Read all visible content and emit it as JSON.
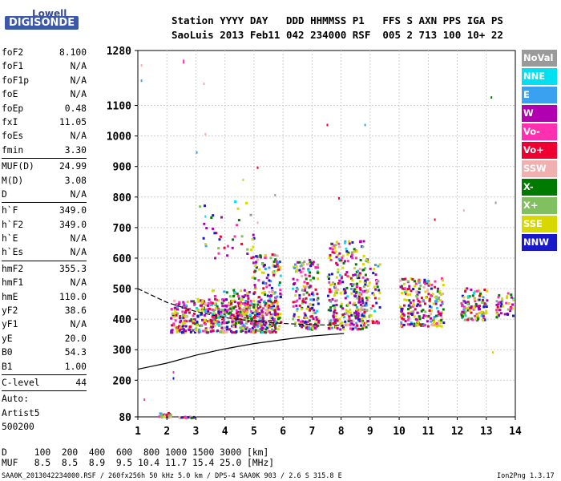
{
  "logo": {
    "top": "Lowell",
    "bottom": "DIGISONDE"
  },
  "header": {
    "line1": "Station YYYY DAY   DDD HHMMSS P1   FFS S AXN PPS IGA PS",
    "line2": "SaoLuis 2013 Feb11 042 234000 RSF  005 2 713 100 10+ 22"
  },
  "params": [
    {
      "label": "foF2",
      "value": "8.100"
    },
    {
      "label": "foF1",
      "value": "N/A"
    },
    {
      "label": "foF1p",
      "value": "N/A"
    },
    {
      "label": "foE",
      "value": "N/A"
    },
    {
      "label": "foEp",
      "value": "0.48"
    },
    {
      "label": "fxI",
      "value": "11.05"
    },
    {
      "label": "foEs",
      "value": "N/A"
    },
    {
      "label": "fmin",
      "value": "3.30"
    },
    {
      "sep": true
    },
    {
      "label": "MUF(D)",
      "value": "24.99"
    },
    {
      "label": "M(D)",
      "value": "3.08"
    },
    {
      "label": "D",
      "value": "N/A"
    },
    {
      "sep": true
    },
    {
      "label": "h`F",
      "value": "349.0"
    },
    {
      "label": "h`F2",
      "value": "349.0"
    },
    {
      "label": "h`E",
      "value": "N/A"
    },
    {
      "label": "h`Es",
      "value": "N/A"
    },
    {
      "sep": true
    },
    {
      "label": "hmF2",
      "value": "355.3"
    },
    {
      "label": "hmF1",
      "value": "N/A"
    },
    {
      "label": "hmE",
      "value": "110.0"
    },
    {
      "label": "yF2",
      "value": "38.6"
    },
    {
      "label": "yF1",
      "value": "N/A"
    },
    {
      "label": "yE",
      "value": "20.0"
    },
    {
      "label": "B0",
      "value": "54.3"
    },
    {
      "label": "B1",
      "value": "1.00"
    },
    {
      "sep": true
    },
    {
      "label": "C-level",
      "value": "44"
    },
    {
      "sep": true
    },
    {
      "text": "Auto:"
    },
    {
      "text": "Artist5"
    },
    {
      "text": "500200"
    }
  ],
  "legend": [
    {
      "label": "NoVal",
      "color": "#9a9a9a"
    },
    {
      "label": "NNE",
      "color": "#00e0f0"
    },
    {
      "label": "E",
      "color": "#3aa0f0"
    },
    {
      "label": "W",
      "color": "#b000b0"
    },
    {
      "label": "Vo-",
      "color": "#ff30b0"
    },
    {
      "label": "Vo+",
      "color": "#ee0033"
    },
    {
      "label": "SSW",
      "color": "#f0b0b0"
    },
    {
      "label": "X-",
      "color": "#007a00"
    },
    {
      "label": "X+",
      "color": "#80c060"
    },
    {
      "label": "SSE",
      "color": "#d8d800"
    },
    {
      "label": "NNW",
      "color": "#1818c8"
    }
  ],
  "muf_table": {
    "row1": "D     100  200  400  600  800 1000 1500 3000 [km]",
    "row2": "MUF   8.5  8.5  8.9  9.5 10.4 11.7 15.4 25.0 [MHz]"
  },
  "footer": {
    "left": "SAA0K_2013042234000.RSF / 260fx256h 50 kHz 5.0 km / DPS-4 SAA0K 903 / 2.6 S 315.8 E",
    "right": "Ion2Png 1.3.17"
  },
  "chart_data": {
    "type": "scatter",
    "xlim": [
      1,
      14
    ],
    "ylim": [
      80,
      1280
    ],
    "xticks": [
      1,
      2,
      3,
      4,
      5,
      6,
      7,
      8,
      9,
      10,
      11,
      12,
      13,
      14
    ],
    "yticks": [
      80,
      200,
      300,
      400,
      500,
      600,
      700,
      800,
      900,
      1000,
      1100,
      1280
    ],
    "clusters": [
      {
        "x": [
          1.7,
          2.1
        ],
        "y": [
          82,
          96
        ],
        "n": 35
      },
      {
        "x": [
          2.4,
          3.0
        ],
        "y": [
          80,
          84
        ],
        "n": 14
      },
      {
        "x": [
          2.1,
          5.8
        ],
        "y": [
          360,
          470
        ],
        "n": 520
      },
      {
        "x": [
          3.5,
          4.9
        ],
        "y": [
          390,
          500
        ],
        "n": 120
      },
      {
        "x": [
          4.9,
          5.9
        ],
        "y": [
          380,
          620
        ],
        "n": 170
      },
      {
        "x": [
          6.3,
          7.2
        ],
        "y": [
          370,
          600
        ],
        "n": 170
      },
      {
        "x": [
          7.5,
          8.9
        ],
        "y": [
          370,
          660
        ],
        "n": 300
      },
      {
        "x": [
          8.5,
          9.3
        ],
        "y": [
          390,
          600
        ],
        "n": 80
      },
      {
        "x": [
          10.0,
          11.5
        ],
        "y": [
          380,
          540
        ],
        "n": 220
      },
      {
        "x": [
          12.1,
          13.0
        ],
        "y": [
          400,
          510
        ],
        "n": 110
      },
      {
        "x": [
          13.3,
          13.9
        ],
        "y": [
          410,
          490
        ],
        "n": 45
      },
      {
        "x": [
          3.1,
          5.0
        ],
        "y": [
          600,
          790
        ],
        "n": 40
      }
    ],
    "outliers": [
      {
        "x": 1.1,
        "y": 1235
      },
      {
        "x": 1.1,
        "y": 1185
      },
      {
        "x": 2.55,
        "y": 1250
      },
      {
        "x": 2.55,
        "y": 1245
      },
      {
        "x": 3.25,
        "y": 1175
      },
      {
        "x": 3.3,
        "y": 1010
      },
      {
        "x": 3.0,
        "y": 950
      },
      {
        "x": 4.6,
        "y": 860
      },
      {
        "x": 5.1,
        "y": 900
      },
      {
        "x": 5.7,
        "y": 810
      },
      {
        "x": 7.5,
        "y": 1040
      },
      {
        "x": 7.9,
        "y": 800
      },
      {
        "x": 8.8,
        "y": 1040
      },
      {
        "x": 11.2,
        "y": 730
      },
      {
        "x": 12.2,
        "y": 760
      },
      {
        "x": 13.15,
        "y": 1130
      },
      {
        "x": 13.3,
        "y": 785
      },
      {
        "x": 13.2,
        "y": 295
      },
      {
        "x": 2.2,
        "y": 230
      },
      {
        "x": 2.2,
        "y": 210
      },
      {
        "x": 1.2,
        "y": 140
      },
      {
        "x": 5.1,
        "y": 720
      },
      {
        "x": 3.3,
        "y": 740
      }
    ],
    "profile_curve": [
      {
        "x": 1.0,
        "y": 236
      },
      {
        "x": 2.0,
        "y": 256
      },
      {
        "x": 3.0,
        "y": 282
      },
      {
        "x": 4.0,
        "y": 303
      },
      {
        "x": 5.0,
        "y": 320
      },
      {
        "x": 6.0,
        "y": 333
      },
      {
        "x": 7.0,
        "y": 345
      },
      {
        "x": 8.1,
        "y": 353
      }
    ],
    "trace_curve": [
      {
        "x": 1.0,
        "y": 500
      },
      {
        "x": 2.0,
        "y": 455
      },
      {
        "x": 3.0,
        "y": 425
      },
      {
        "x": 4.0,
        "y": 405
      },
      {
        "x": 5.0,
        "y": 393
      },
      {
        "x": 6.0,
        "y": 386
      },
      {
        "x": 7.0,
        "y": 382
      },
      {
        "x": 8.1,
        "y": 380
      }
    ]
  }
}
